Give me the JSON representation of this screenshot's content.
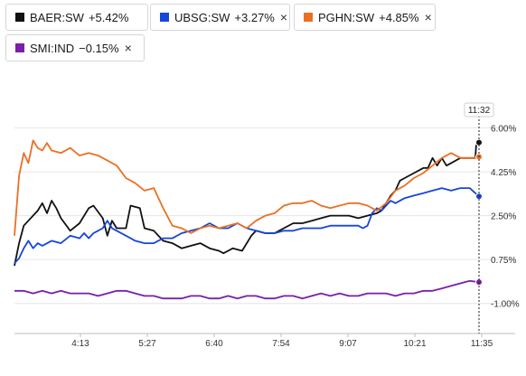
{
  "legend": [
    {
      "name": "BAER:SW",
      "change": "+5.42%",
      "color": "#111111",
      "close": ""
    },
    {
      "name": "UBSG:SW",
      "change": "+3.27%",
      "color": "#1646d9",
      "close": "×"
    },
    {
      "name": "PGHN:SW",
      "change": "+4.85%",
      "color": "#ea7024",
      "close": "×"
    },
    {
      "name": "SMI:IND",
      "change": "−0.15%",
      "color": "#7b1fa8",
      "close": "×"
    }
  ],
  "crosshair_time": "11:32",
  "chart_data": {
    "type": "line",
    "x_labels": [
      "4:13",
      "5:27",
      "6:40",
      "7:54",
      "9:07",
      "10:21",
      "11:35"
    ],
    "y_labels": [
      "6.00%",
      "4.25%",
      "2.50%",
      "0.75%",
      "-1.00%"
    ],
    "y_ticks": [
      6.0,
      4.25,
      2.5,
      0.75,
      -1.0
    ],
    "ylim": [
      -2.2,
      6.2
    ],
    "x_range": [
      0,
      100
    ],
    "grid": true,
    "series": [
      {
        "name": "BAER:SW",
        "color": "#111111",
        "x": [
          0,
          1,
          2,
          3,
          5,
          6,
          7,
          8,
          9,
          10,
          12,
          14,
          16,
          17,
          19,
          20,
          21,
          22,
          24,
          25,
          27,
          28,
          30,
          32,
          34,
          36,
          38,
          40,
          42,
          44,
          45,
          47,
          49,
          51,
          52,
          54,
          56,
          58,
          60,
          62,
          64,
          66,
          68,
          70,
          72,
          74,
          76,
          78,
          79,
          80,
          81,
          82,
          83,
          84,
          86,
          88,
          89,
          90,
          91,
          92,
          93,
          94,
          96,
          98,
          99.2,
          99.4,
          100
        ],
        "y": [
          0.5,
          1.4,
          2.1,
          2.3,
          2.7,
          3.0,
          2.6,
          3.1,
          2.8,
          2.4,
          1.9,
          2.2,
          2.8,
          2.9,
          2.4,
          1.7,
          2.3,
          2.0,
          2.0,
          2.9,
          2.8,
          2.0,
          1.9,
          1.5,
          1.4,
          1.2,
          1.3,
          1.4,
          1.2,
          1.1,
          1.0,
          1.2,
          1.1,
          1.7,
          1.9,
          1.8,
          1.8,
          2.0,
          2.2,
          2.2,
          2.3,
          2.4,
          2.5,
          2.5,
          2.5,
          2.4,
          2.5,
          2.6,
          2.7,
          3.0,
          3.3,
          3.5,
          3.9,
          4.0,
          4.2,
          4.4,
          4.4,
          4.8,
          4.5,
          4.8,
          4.5,
          4.6,
          4.8,
          4.8,
          4.8,
          5.3,
          5.42
        ]
      },
      {
        "name": "UBSG:SW",
        "color": "#1646d9",
        "x": [
          0,
          1,
          2,
          3,
          4,
          5,
          6,
          8,
          10,
          12,
          14,
          15,
          16,
          17,
          18,
          19,
          20,
          21,
          22,
          24,
          25,
          26,
          28,
          30,
          32,
          34,
          36,
          38,
          40,
          42,
          44,
          46,
          48,
          50,
          52,
          54,
          56,
          58,
          60,
          62,
          64,
          66,
          68,
          70,
          72,
          74,
          75,
          76,
          77,
          78,
          79,
          80,
          81,
          82,
          84,
          86,
          88,
          90,
          92,
          94,
          96,
          98,
          100
        ],
        "y": [
          0.6,
          0.8,
          1.2,
          1.5,
          1.2,
          1.4,
          1.3,
          1.5,
          1.4,
          1.7,
          1.6,
          1.8,
          1.6,
          1.8,
          1.9,
          2.0,
          2.3,
          2.0,
          1.9,
          1.7,
          1.6,
          1.5,
          1.4,
          1.4,
          1.6,
          1.6,
          1.8,
          1.9,
          2.0,
          2.2,
          2.0,
          2.0,
          2.2,
          2.0,
          1.9,
          1.8,
          1.8,
          1.9,
          1.9,
          2.0,
          2.0,
          2.0,
          2.1,
          2.1,
          2.1,
          2.1,
          2.0,
          2.1,
          2.6,
          2.8,
          2.7,
          2.9,
          3.1,
          3.0,
          3.2,
          3.3,
          3.4,
          3.5,
          3.6,
          3.5,
          3.6,
          3.6,
          3.27
        ]
      },
      {
        "name": "PGHN:SW",
        "color": "#ea7024",
        "x": [
          0,
          1,
          2,
          3,
          4,
          5,
          6,
          7,
          8,
          10,
          12,
          14,
          16,
          18,
          20,
          22,
          24,
          26,
          28,
          30,
          32,
          34,
          36,
          38,
          40,
          42,
          44,
          46,
          48,
          50,
          52,
          54,
          56,
          58,
          60,
          62,
          64,
          66,
          68,
          70,
          72,
          74,
          76,
          78,
          80,
          82,
          84,
          86,
          88,
          90,
          92,
          94,
          96,
          98,
          99.4,
          100
        ],
        "y": [
          1.7,
          4.1,
          5.0,
          4.6,
          5.5,
          5.2,
          5.1,
          5.4,
          5.1,
          5.0,
          5.2,
          4.9,
          5.0,
          4.9,
          4.7,
          4.5,
          4.0,
          3.8,
          3.5,
          3.6,
          2.8,
          2.1,
          2.0,
          1.8,
          2.0,
          2.1,
          2.0,
          2.1,
          2.2,
          2.0,
          2.3,
          2.5,
          2.6,
          2.9,
          3.0,
          3.0,
          3.1,
          2.9,
          2.8,
          2.9,
          3.0,
          3.0,
          2.9,
          2.7,
          3.0,
          3.5,
          3.7,
          4.0,
          4.2,
          4.5,
          4.8,
          5.0,
          4.8,
          4.8,
          4.8,
          4.85
        ]
      },
      {
        "name": "SMI:IND",
        "color": "#7b1fa8",
        "x": [
          0,
          2,
          4,
          6,
          8,
          10,
          12,
          14,
          16,
          18,
          20,
          22,
          24,
          26,
          28,
          30,
          32,
          34,
          36,
          38,
          40,
          42,
          44,
          46,
          48,
          50,
          52,
          54,
          56,
          58,
          60,
          62,
          64,
          66,
          68,
          70,
          72,
          74,
          76,
          78,
          80,
          82,
          84,
          86,
          88,
          90,
          92,
          94,
          96,
          98,
          100
        ],
        "y": [
          -0.5,
          -0.5,
          -0.6,
          -0.5,
          -0.6,
          -0.5,
          -0.6,
          -0.6,
          -0.6,
          -0.7,
          -0.6,
          -0.5,
          -0.5,
          -0.6,
          -0.7,
          -0.7,
          -0.8,
          -0.8,
          -0.8,
          -0.7,
          -0.7,
          -0.8,
          -0.8,
          -0.7,
          -0.8,
          -0.7,
          -0.7,
          -0.8,
          -0.8,
          -0.7,
          -0.7,
          -0.8,
          -0.7,
          -0.6,
          -0.7,
          -0.6,
          -0.7,
          -0.7,
          -0.6,
          -0.6,
          -0.6,
          -0.7,
          -0.6,
          -0.6,
          -0.5,
          -0.5,
          -0.4,
          -0.3,
          -0.2,
          -0.1,
          -0.15
        ]
      }
    ]
  }
}
